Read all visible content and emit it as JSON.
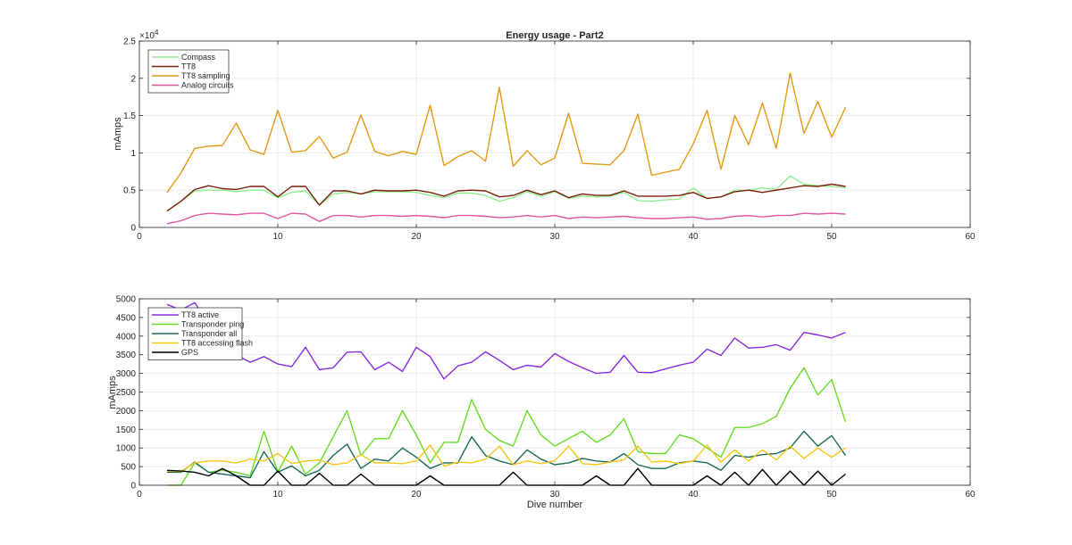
{
  "chart_data": [
    {
      "type": "line",
      "title": "Energy usage - Part2",
      "xlabel": "",
      "ylabel": "mAmps",
      "xlim": [
        0,
        60
      ],
      "ylim": [
        0,
        25000
      ],
      "x_ticks": [
        0,
        10,
        20,
        30,
        40,
        50,
        60
      ],
      "y_ticks": [
        0,
        5000,
        10000,
        15000,
        20000,
        25000
      ],
      "y_tick_labels": [
        "0",
        "0.5",
        "1",
        "1.5",
        "2",
        "2.5"
      ],
      "y_exponent_label": "×10",
      "y_exponent_value": "4",
      "grid": true,
      "legend_position": "top-left",
      "x": [
        2,
        3,
        4,
        5,
        6,
        7,
        8,
        9,
        10,
        11,
        12,
        13,
        14,
        15,
        16,
        17,
        18,
        19,
        20,
        21,
        22,
        23,
        24,
        25,
        26,
        27,
        28,
        29,
        30,
        31,
        32,
        33,
        34,
        35,
        36,
        37,
        38,
        39,
        40,
        41,
        42,
        43,
        44,
        45,
        46,
        47,
        48,
        49,
        50,
        51
      ],
      "series": [
        {
          "name": "Compass",
          "color": "#90ee90",
          "values": [
            2200,
            3500,
            4900,
            5000,
            5000,
            4800,
            5000,
            5000,
            4000,
            4700,
            4900,
            3000,
            4500,
            4700,
            4500,
            4800,
            4800,
            4800,
            4700,
            4300,
            4000,
            4600,
            4600,
            4300,
            3500,
            4000,
            4800,
            4200,
            4800,
            3900,
            4200,
            4100,
            4200,
            4700,
            3600,
            3500,
            3700,
            3800,
            5300,
            3900,
            4100,
            5000,
            5000,
            5300,
            5100,
            6900,
            5800,
            5600,
            5500,
            5300
          ]
        },
        {
          "name": "TT8",
          "color": "#7b1f0a",
          "values": [
            2200,
            3500,
            5100,
            5600,
            5200,
            5100,
            5500,
            5500,
            4100,
            5500,
            5500,
            3000,
            4900,
            4900,
            4500,
            5000,
            4900,
            4900,
            5000,
            4700,
            4200,
            4900,
            5000,
            4900,
            4100,
            4300,
            5000,
            4400,
            4900,
            4000,
            4500,
            4300,
            4300,
            4900,
            4200,
            4200,
            4200,
            4300,
            4700,
            3900,
            4100,
            4800,
            5000,
            4700,
            5000,
            5300,
            5600,
            5500,
            5800,
            5500
          ]
        },
        {
          "name": "TT8 sampling",
          "color": "#e59a17",
          "values": [
            4700,
            7300,
            10600,
            10900,
            11000,
            14000,
            10400,
            9800,
            15700,
            10100,
            10300,
            12200,
            9300,
            10100,
            15100,
            10200,
            9600,
            10200,
            9800,
            16400,
            8300,
            9500,
            10300,
            8900,
            18800,
            8200,
            10300,
            8400,
            9300,
            15300,
            8600,
            8500,
            8400,
            10300,
            15200,
            7000,
            7400,
            7800,
            11200,
            15700,
            7800,
            15000,
            11100,
            16700,
            10600,
            20700,
            12600,
            16900,
            12100,
            16100
          ]
        },
        {
          "name": "Analog circuits",
          "color": "#e0559b",
          "values": [
            500,
            900,
            1600,
            1900,
            1800,
            1700,
            1900,
            1900,
            1200,
            1900,
            1800,
            800,
            1600,
            1600,
            1400,
            1600,
            1600,
            1500,
            1600,
            1500,
            1300,
            1600,
            1600,
            1500,
            1300,
            1400,
            1600,
            1400,
            1600,
            1200,
            1400,
            1300,
            1400,
            1500,
            1300,
            1200,
            1200,
            1300,
            1400,
            1100,
            1200,
            1500,
            1600,
            1400,
            1600,
            1600,
            1900,
            1800,
            1900,
            1800
          ]
        }
      ]
    },
    {
      "type": "line",
      "title": "",
      "xlabel": "Dive number",
      "ylabel": "mAmps",
      "xlim": [
        0,
        60
      ],
      "ylim": [
        0,
        5000
      ],
      "x_ticks": [
        0,
        10,
        20,
        30,
        40,
        50,
        60
      ],
      "y_ticks": [
        0,
        500,
        1000,
        1500,
        2000,
        2500,
        3000,
        3500,
        4000,
        4500,
        5000
      ],
      "y_tick_labels": [
        "0",
        "500",
        "1000",
        "1500",
        "2000",
        "2500",
        "3000",
        "3500",
        "4000",
        "4500",
        "5000"
      ],
      "grid": true,
      "legend_position": "top-left",
      "x": [
        2,
        3,
        4,
        5,
        6,
        7,
        8,
        9,
        10,
        11,
        12,
        13,
        14,
        15,
        16,
        17,
        18,
        19,
        20,
        21,
        22,
        23,
        24,
        25,
        26,
        27,
        28,
        29,
        30,
        31,
        32,
        33,
        34,
        35,
        36,
        37,
        38,
        39,
        40,
        41,
        42,
        43,
        44,
        45,
        46,
        47,
        48,
        49,
        50,
        51
      ],
      "series": [
        {
          "name": "TT8 active",
          "color": "#8a2be2",
          "values": [
            4850,
            4700,
            4900,
            4300,
            4050,
            3500,
            3300,
            3450,
            3250,
            3180,
            3700,
            3100,
            3150,
            3570,
            3580,
            3100,
            3300,
            3050,
            3700,
            3450,
            2850,
            3200,
            3300,
            3580,
            3350,
            3100,
            3220,
            3170,
            3530,
            3320,
            3150,
            3000,
            3030,
            3480,
            3030,
            3020,
            3120,
            3220,
            3300,
            3650,
            3480,
            3950,
            3680,
            3700,
            3770,
            3620,
            4100,
            4030,
            3950,
            4100
          ]
        },
        {
          "name": "Transponder ping",
          "color": "#66dd22",
          "values": [
            0,
            0,
            600,
            350,
            400,
            350,
            250,
            1450,
            350,
            1050,
            300,
            600,
            1300,
            2000,
            800,
            1250,
            1250,
            2000,
            1350,
            600,
            1150,
            1150,
            2300,
            1500,
            1200,
            1050,
            2000,
            1350,
            1050,
            1250,
            1450,
            1150,
            1350,
            1780,
            900,
            850,
            850,
            1350,
            1250,
            1000,
            750,
            1550,
            1550,
            1650,
            1850,
            2600,
            3150,
            2420,
            2830,
            1700
          ]
        },
        {
          "name": "Transponder all",
          "color": "#1b6b5a",
          "values": [
            350,
            350,
            620,
            350,
            300,
            250,
            200,
            900,
            350,
            520,
            250,
            400,
            800,
            1100,
            450,
            700,
            650,
            1000,
            750,
            450,
            600,
            600,
            1300,
            800,
            650,
            550,
            950,
            700,
            550,
            600,
            720,
            650,
            620,
            850,
            550,
            450,
            450,
            600,
            650,
            600,
            400,
            800,
            750,
            820,
            850,
            1000,
            1450,
            1050,
            1330,
            800
          ]
        },
        {
          "name": "TT8 accessing flash",
          "color": "#f5c518",
          "values": [
            380,
            370,
            600,
            650,
            650,
            600,
            700,
            650,
            850,
            580,
            650,
            680,
            550,
            600,
            820,
            600,
            600,
            580,
            650,
            1080,
            520,
            620,
            600,
            700,
            1050,
            550,
            650,
            580,
            650,
            1050,
            580,
            550,
            620,
            680,
            1050,
            620,
            650,
            580,
            650,
            1080,
            620,
            950,
            650,
            950,
            680,
            1050,
            720,
            1000,
            750,
            1000
          ]
        },
        {
          "name": "GPS",
          "color": "#000000",
          "values": [
            400,
            380,
            350,
            250,
            450,
            250,
            0,
            0,
            380,
            0,
            0,
            320,
            0,
            0,
            300,
            0,
            0,
            0,
            0,
            250,
            0,
            0,
            0,
            0,
            0,
            350,
            0,
            0,
            0,
            0,
            0,
            250,
            0,
            0,
            450,
            0,
            0,
            0,
            0,
            250,
            0,
            350,
            0,
            420,
            0,
            380,
            0,
            380,
            0,
            300
          ]
        }
      ]
    }
  ]
}
